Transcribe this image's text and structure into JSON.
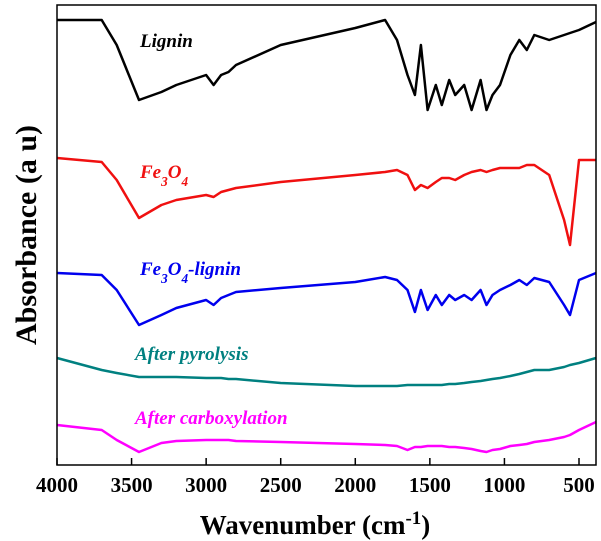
{
  "chart_data": {
    "type": "line",
    "x_label": "Wavenumber (cm-1)",
    "y_label": "Absorbance (a u)",
    "xlim": [
      4000,
      386
    ],
    "xticks": [
      4000,
      3500,
      3000,
      2500,
      2000,
      1500,
      1000,
      500
    ],
    "ylim": [
      0,
      460
    ],
    "x": [
      4000,
      3700,
      3600,
      3450,
      3300,
      3200,
      3000,
      2950,
      2900,
      2850,
      2800,
      2500,
      2000,
      1800,
      1720,
      1650,
      1600,
      1560,
      1515,
      1460,
      1420,
      1370,
      1330,
      1270,
      1220,
      1160,
      1120,
      1080,
      1030,
      960,
      900,
      850,
      800,
      700,
      600,
      560,
      500,
      386
    ],
    "series": [
      {
        "name": "Lignin",
        "color": "#000000",
        "values": [
          445,
          445,
          420,
          365,
          373,
          380,
          390,
          380,
          390,
          393,
          400,
          420,
          437,
          445,
          425,
          390,
          370,
          420,
          355,
          380,
          360,
          385,
          370,
          380,
          355,
          385,
          355,
          370,
          380,
          410,
          425,
          415,
          430,
          425,
          430,
          432,
          435,
          443
        ]
      },
      {
        "name": "Fe3O4",
        "color": "#f01010",
        "values": [
          307,
          303,
          285,
          247,
          260,
          265,
          270,
          268,
          273,
          275,
          277,
          283,
          290,
          293,
          295,
          290,
          275,
          280,
          277,
          283,
          287,
          287,
          285,
          290,
          293,
          295,
          293,
          295,
          297,
          297,
          297,
          300,
          300,
          290,
          245,
          220,
          305,
          305
        ]
      },
      {
        "name": "Fe3O4-lignin",
        "color": "#0000ee",
        "values": [
          192,
          190,
          175,
          140,
          150,
          157,
          165,
          160,
          167,
          170,
          173,
          177,
          183,
          188,
          185,
          175,
          153,
          175,
          155,
          170,
          160,
          170,
          165,
          170,
          165,
          175,
          160,
          170,
          175,
          180,
          185,
          180,
          187,
          183,
          160,
          150,
          185,
          192
        ]
      },
      {
        "name": "After pyrolysis",
        "color": "#008080",
        "values": [
          107,
          95,
          92,
          88,
          88,
          88,
          87,
          87,
          87,
          86,
          86,
          82,
          79,
          79,
          79,
          80,
          80,
          80,
          80,
          80,
          80,
          81,
          81,
          82,
          83,
          84,
          85,
          86,
          87,
          89,
          91,
          93,
          95,
          95,
          98,
          100,
          102,
          107
        ]
      },
      {
        "name": "After carboxylation",
        "color": "#ff00ff",
        "values": [
          40,
          35,
          25,
          13,
          22,
          24,
          25,
          25,
          25,
          25,
          24,
          23,
          21,
          20,
          19,
          15,
          18,
          18,
          19,
          19,
          19,
          18,
          18,
          17,
          16,
          14,
          13,
          15,
          16,
          19,
          20,
          21,
          23,
          25,
          28,
          30,
          35,
          43
        ]
      }
    ]
  }
}
